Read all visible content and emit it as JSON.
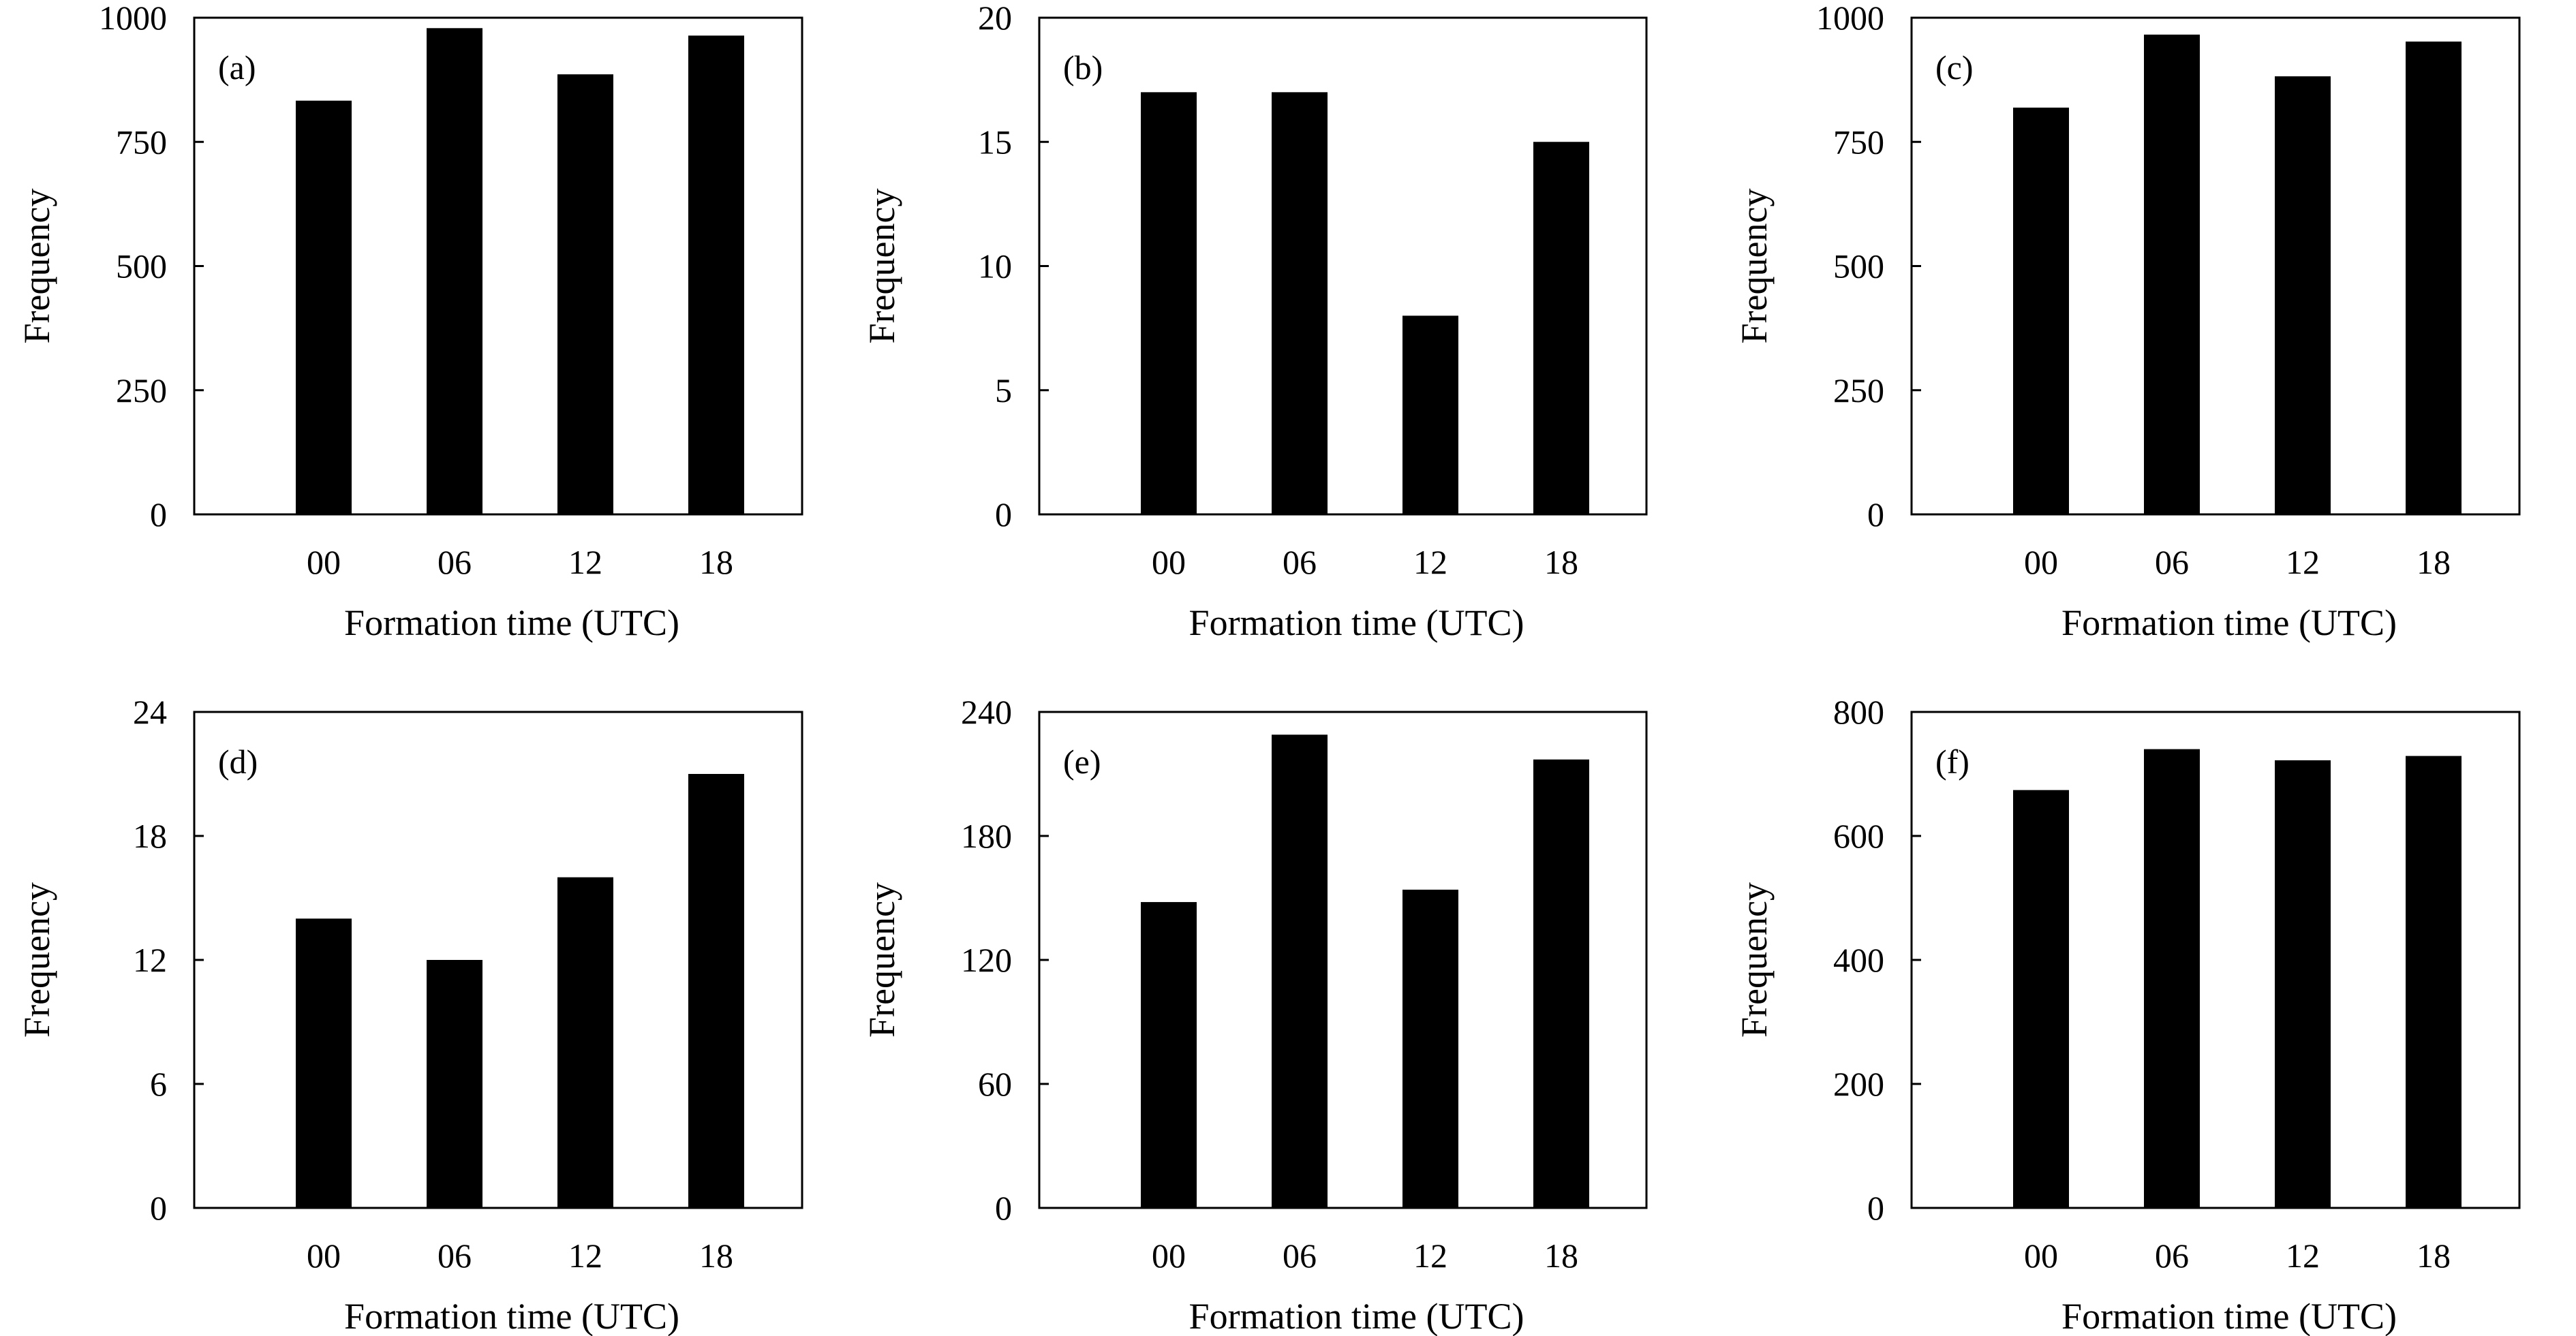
{
  "figure": {
    "bar_color": "#000000",
    "axis_color": "#000000"
  },
  "chart_data": [
    {
      "panel": "(a)",
      "type": "bar",
      "categories": [
        "00",
        "06",
        "12",
        "18"
      ],
      "values": [
        833,
        979,
        886,
        964
      ],
      "xlabel": "Formation time (UTC)",
      "ylabel": "Frequency",
      "ylim": [
        0,
        1000
      ],
      "yticks": [
        "0",
        "250",
        "500",
        "750",
        "1000"
      ]
    },
    {
      "panel": "(b)",
      "type": "bar",
      "categories": [
        "00",
        "06",
        "12",
        "18"
      ],
      "values": [
        17,
        17,
        8,
        15
      ],
      "xlabel": "Formation time (UTC)",
      "ylabel": "Frequency",
      "ylim": [
        0,
        20
      ],
      "yticks": [
        "0",
        "5",
        "10",
        "15",
        "20"
      ]
    },
    {
      "panel": "(c)",
      "type": "bar",
      "categories": [
        "00",
        "06",
        "12",
        "18"
      ],
      "values": [
        819,
        966,
        882,
        952
      ],
      "xlabel": "Formation time (UTC)",
      "ylabel": "Frequency",
      "ylim": [
        0,
        1000
      ],
      "yticks": [
        "0",
        "250",
        "500",
        "750",
        "1000"
      ]
    },
    {
      "panel": "(d)",
      "type": "bar",
      "categories": [
        "00",
        "06",
        "12",
        "18"
      ],
      "values": [
        14,
        12,
        16,
        21
      ],
      "xlabel": "Formation time (UTC)",
      "ylabel": "Frequency",
      "ylim": [
        0,
        24
      ],
      "yticks": [
        "0",
        "6",
        "12",
        "18",
        "24"
      ]
    },
    {
      "panel": "(e)",
      "type": "bar",
      "categories": [
        "00",
        "06",
        "12",
        "18"
      ],
      "values": [
        148,
        229,
        154,
        217
      ],
      "xlabel": "Formation time (UTC)",
      "ylabel": "Frequency",
      "ylim": [
        0,
        240
      ],
      "yticks": [
        "0",
        "60",
        "120",
        "180",
        "240"
      ]
    },
    {
      "panel": "(f)",
      "type": "bar",
      "categories": [
        "00",
        "06",
        "12",
        "18"
      ],
      "values": [
        674,
        740,
        722,
        729
      ],
      "xlabel": "Formation time (UTC)",
      "ylabel": "Frequency",
      "ylim": [
        0,
        800
      ],
      "yticks": [
        "0",
        "200",
        "400",
        "600",
        "800"
      ]
    }
  ]
}
